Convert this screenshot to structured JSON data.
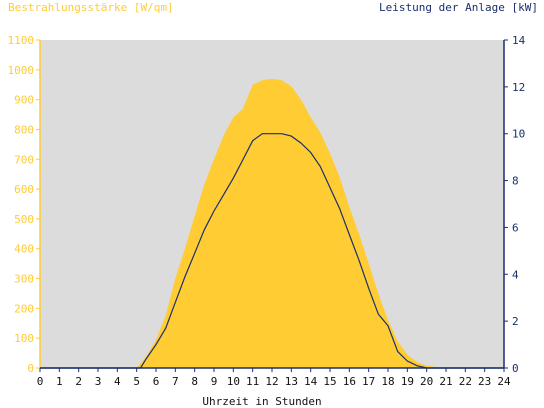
{
  "chart_data": {
    "type": "area",
    "left_title": "Bestrahlungsstärke [W/qm]",
    "right_title": "Leistung der Anlage [kW]",
    "xlabel": "Uhrzeit in Stunden",
    "x_ticks": [
      "0",
      "1",
      "2",
      "3",
      "4",
      "5",
      "6",
      "7",
      "8",
      "9",
      "10",
      "11",
      "12",
      "13",
      "14",
      "15",
      "16",
      "17",
      "18",
      "19",
      "20",
      "21",
      "22",
      "23",
      "24"
    ],
    "xlim": [
      0,
      24
    ],
    "y_left": {
      "lim": [
        0,
        1100
      ],
      "ticks": [
        "0",
        "100",
        "200",
        "300",
        "400",
        "500",
        "600",
        "700",
        "800",
        "900",
        "1000",
        "1100"
      ]
    },
    "y_right": {
      "lim": [
        0,
        14
      ],
      "ticks": [
        "0",
        "2",
        "4",
        "6",
        "8",
        "10",
        "12",
        "14"
      ]
    },
    "grid": false,
    "colors": {
      "irradiance": "#ffcc33",
      "power": "#1a2f6e",
      "plot_bg": "#dcdcdc",
      "left_axis": "#ffcc33",
      "right_axis": "#1a2f6e"
    },
    "series": [
      {
        "axis": "left",
        "x": [
          0,
          5.0,
          5.5,
          6.0,
          6.5,
          7.0,
          7.5,
          8.0,
          8.5,
          9.0,
          9.5,
          10.0,
          10.5,
          11.0,
          11.5,
          12.0,
          12.5,
          13.0,
          13.5,
          14.0,
          14.5,
          15.0,
          15.5,
          16.0,
          16.5,
          17.0,
          17.5,
          18.0,
          18.5,
          19.0,
          19.5,
          20.0,
          20.5,
          21.0,
          24
        ],
        "values": [
          0,
          0,
          40,
          95,
          175,
          300,
          400,
          510,
          615,
          700,
          780,
          840,
          870,
          950,
          965,
          970,
          965,
          945,
          900,
          840,
          790,
          720,
          640,
          540,
          450,
          350,
          250,
          160,
          90,
          45,
          20,
          8,
          3,
          0,
          0
        ]
      },
      {
        "axis": "right",
        "x": [
          0,
          5.2,
          5.5,
          6.0,
          6.5,
          7.0,
          7.5,
          8.0,
          8.5,
          9.0,
          9.5,
          10.0,
          10.5,
          11.0,
          11.5,
          12.0,
          12.5,
          13.0,
          13.5,
          14.0,
          14.5,
          15.0,
          15.5,
          16.0,
          16.5,
          17.0,
          17.5,
          18.0,
          18.5,
          19.0,
          19.5,
          20.0,
          20.5,
          24
        ],
        "values": [
          0,
          0,
          0.4,
          1.0,
          1.7,
          2.8,
          3.9,
          4.9,
          5.9,
          6.7,
          7.4,
          8.1,
          8.9,
          9.7,
          10.0,
          10.0,
          10.0,
          9.9,
          9.6,
          9.2,
          8.6,
          7.7,
          6.8,
          5.7,
          4.6,
          3.4,
          2.3,
          1.8,
          0.7,
          0.3,
          0.1,
          0.0,
          0,
          0
        ]
      }
    ]
  }
}
